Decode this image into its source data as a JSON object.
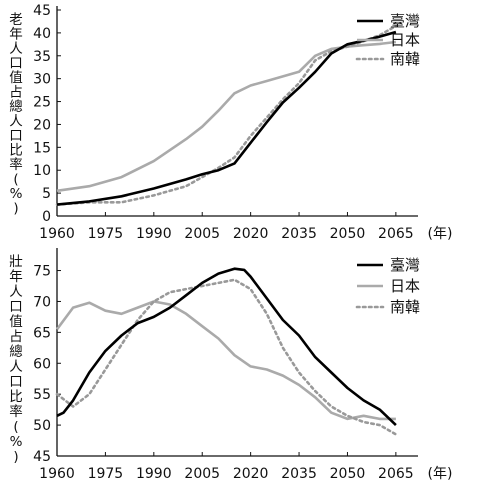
{
  "chart_data": [
    {
      "type": "line",
      "ylabel": "老年人口值占總人口比率(%)",
      "ylabel_chars": [
        "老",
        "年",
        "人",
        "口",
        "值",
        "占",
        "總",
        "人",
        "口",
        "比",
        "率",
        "(",
        "%",
        ")"
      ],
      "xunit": "(年)",
      "xlim": [
        1960,
        2070
      ],
      "ylim": [
        0,
        45
      ],
      "yticks": [
        0,
        5,
        10,
        15,
        20,
        25,
        30,
        35,
        40,
        45
      ],
      "xticks": [
        1960,
        1975,
        1990,
        2005,
        2020,
        2035,
        2050,
        2065
      ],
      "grid": false,
      "legend_position": "top-right",
      "series": [
        {
          "name": "臺灣",
          "style": "solid-black",
          "color": "#000000",
          "x": [
            1960,
            1970,
            1980,
            1990,
            2000,
            2005,
            2010,
            2015,
            2020,
            2025,
            2030,
            2035,
            2040,
            2045,
            2050,
            2055,
            2060,
            2065
          ],
          "y": [
            2.5,
            3.2,
            4.3,
            6.0,
            8.0,
            9.1,
            10.0,
            11.5,
            16.0,
            20.5,
            24.8,
            28.0,
            31.5,
            35.5,
            37.5,
            38.3,
            39.2,
            40.2
          ]
        },
        {
          "name": "日本",
          "style": "solid-gray",
          "color": "#aaaaaa",
          "x": [
            1960,
            1970,
            1980,
            1990,
            2000,
            2005,
            2010,
            2015,
            2020,
            2025,
            2030,
            2035,
            2040,
            2045,
            2050,
            2055,
            2060,
            2065
          ],
          "y": [
            5.5,
            6.5,
            8.5,
            12.0,
            16.8,
            19.5,
            23.0,
            26.8,
            28.5,
            29.5,
            30.5,
            31.5,
            35.0,
            36.5,
            37.0,
            37.3,
            37.6,
            38.0
          ]
        },
        {
          "name": "南韓",
          "style": "dotted-gray",
          "color": "#999999",
          "x": [
            1960,
            1970,
            1980,
            1990,
            2000,
            2005,
            2010,
            2015,
            2020,
            2025,
            2030,
            2035,
            2040,
            2045,
            2050,
            2055,
            2060,
            2065
          ],
          "y": [
            2.5,
            3.0,
            3.0,
            4.5,
            6.5,
            8.5,
            10.5,
            12.8,
            17.5,
            21.5,
            25.5,
            29.0,
            34.0,
            36.0,
            37.0,
            38.2,
            39.5,
            41.5
          ]
        }
      ]
    },
    {
      "type": "line",
      "ylabel": "壯年人口值占總人口比率(%)",
      "ylabel_chars": [
        "壯",
        "年",
        "人",
        "口",
        "值",
        "占",
        "總",
        "人",
        "口",
        "比",
        "率",
        "(",
        "%",
        ")"
      ],
      "xunit": "(年)",
      "xlim": [
        1960,
        2070
      ],
      "ylim": [
        45,
        78
      ],
      "yticks": [
        45,
        50,
        55,
        60,
        65,
        70,
        75
      ],
      "xticks": [
        1960,
        1975,
        1990,
        2005,
        2020,
        2035,
        2050,
        2065
      ],
      "grid": false,
      "legend_position": "top-right",
      "series": [
        {
          "name": "臺灣",
          "style": "solid-black",
          "color": "#000000",
          "x": [
            1960,
            1962,
            1965,
            1970,
            1975,
            1980,
            1985,
            1990,
            1995,
            2000,
            2005,
            2010,
            2015,
            2018,
            2020,
            2025,
            2030,
            2035,
            2040,
            2045,
            2050,
            2055,
            2060,
            2065
          ],
          "y": [
            51.5,
            52.0,
            54.0,
            58.5,
            62.0,
            64.5,
            66.5,
            67.5,
            69.0,
            71.0,
            73.0,
            74.5,
            75.3,
            75.1,
            74.0,
            70.5,
            67.0,
            64.5,
            61.0,
            58.5,
            56.0,
            54.0,
            52.5,
            50.0
          ]
        },
        {
          "name": "日本",
          "style": "solid-gray",
          "color": "#aaaaaa",
          "x": [
            1960,
            1965,
            1970,
            1975,
            1980,
            1985,
            1990,
            1995,
            2000,
            2005,
            2010,
            2015,
            2020,
            2025,
            2030,
            2035,
            2040,
            2045,
            2050,
            2055,
            2060,
            2065
          ],
          "y": [
            65.5,
            69.0,
            69.8,
            68.5,
            68.0,
            69.0,
            70.0,
            69.5,
            68.0,
            66.0,
            64.0,
            61.3,
            59.5,
            59.0,
            58.0,
            56.5,
            54.5,
            52.0,
            51.0,
            51.5,
            51.0,
            51.0
          ]
        },
        {
          "name": "南韓",
          "style": "dotted-gray",
          "color": "#999999",
          "x": [
            1960,
            1965,
            1970,
            1975,
            1980,
            1985,
            1990,
            1995,
            2000,
            2005,
            2010,
            2015,
            2020,
            2025,
            2030,
            2035,
            2040,
            2045,
            2050,
            2055,
            2060,
            2065
          ],
          "y": [
            55.0,
            53.0,
            55.0,
            59.0,
            63.0,
            67.0,
            70.0,
            71.5,
            72.0,
            72.5,
            73.0,
            73.5,
            72.0,
            68.0,
            62.5,
            58.5,
            55.5,
            53.0,
            51.5,
            50.5,
            50.0,
            48.5
          ]
        }
      ]
    }
  ]
}
